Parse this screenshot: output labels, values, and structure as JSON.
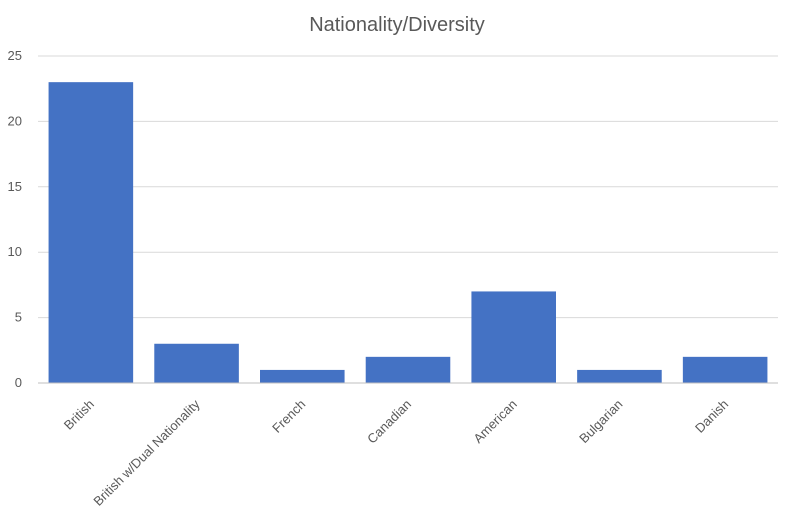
{
  "chart_data": {
    "type": "bar",
    "title": "Nationality/Diversity",
    "categories": [
      "British",
      "British w/Dual Nationality",
      "French",
      "Canadian",
      "American",
      "Bulgarian",
      "Danish"
    ],
    "values": [
      23,
      3,
      1,
      2,
      7,
      1,
      2
    ],
    "ylim": [
      0,
      25
    ],
    "yticks": [
      0,
      5,
      10,
      15,
      20,
      25
    ],
    "grid": true,
    "legend": "none",
    "bar_color": "#4472c4"
  }
}
